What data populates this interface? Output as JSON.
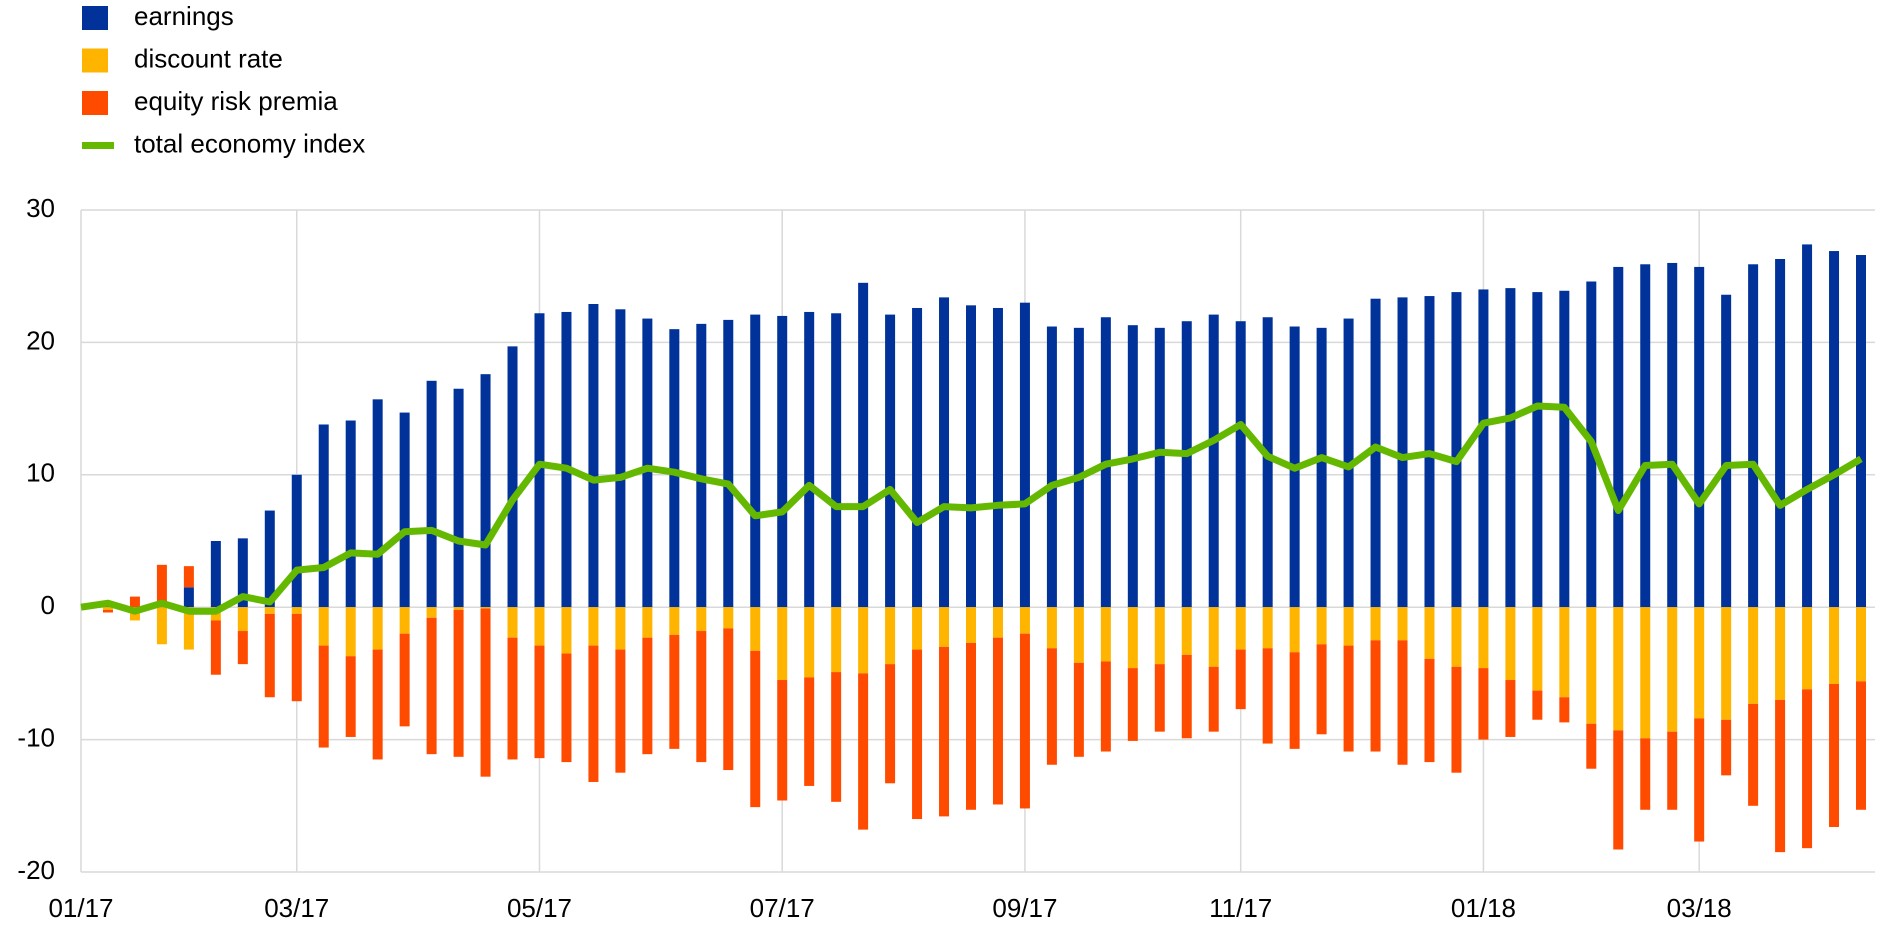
{
  "chart_data": {
    "type": "bar",
    "stacked": true,
    "categories": [
      "01/17",
      null,
      null,
      null,
      null,
      null,
      null,
      null,
      "03/17",
      null,
      null,
      null,
      null,
      null,
      null,
      null,
      null,
      "05/17",
      null,
      null,
      null,
      null,
      null,
      null,
      null,
      null,
      "07/17",
      null,
      null,
      null,
      null,
      null,
      null,
      null,
      null,
      "09/17",
      null,
      null,
      null,
      null,
      null,
      null,
      null,
      "11/17",
      null,
      null,
      null,
      null,
      null,
      null,
      null,
      null,
      "01/18",
      null,
      null,
      null,
      null,
      null,
      null,
      null,
      "03/18",
      null,
      null,
      null,
      null,
      null,
      null
    ],
    "series": [
      {
        "name": "earnings",
        "type": "bar",
        "color": "#003299",
        "values": [
          0,
          0.3,
          0,
          0,
          1.5,
          5.0,
          5.2,
          7.3,
          10.0,
          13.8,
          14.1,
          15.7,
          14.7,
          17.1,
          16.5,
          17.6,
          19.7,
          22.2,
          22.3,
          22.9,
          22.5,
          21.8,
          21.0,
          21.4,
          21.7,
          22.1,
          22.0,
          22.3,
          22.2,
          24.5,
          22.1,
          22.6,
          23.4,
          22.8,
          22.6,
          23.0,
          21.2,
          21.1,
          21.9,
          21.3,
          21.1,
          21.6,
          22.1,
          21.6,
          21.9,
          21.2,
          21.1,
          21.8,
          23.3,
          23.4,
          23.5,
          23.8,
          24.0,
          24.1,
          23.8,
          23.9,
          24.6,
          25.7,
          25.9,
          26.0,
          25.7,
          23.6,
          25.9,
          26.3,
          27.4,
          26.9,
          26.6
        ]
      },
      {
        "name": "discount rate",
        "type": "bar",
        "color": "#ffb400",
        "values": [
          0,
          -0.2,
          -1.0,
          -2.8,
          -3.2,
          -1.0,
          -1.8,
          -0.5,
          -0.5,
          -2.9,
          -3.7,
          -3.2,
          -2.0,
          -0.8,
          -0.2,
          -0.1,
          -2.3,
          -2.9,
          -3.5,
          -2.9,
          -3.2,
          -2.3,
          -2.1,
          -1.8,
          -1.6,
          -3.3,
          -5.5,
          -5.3,
          -4.9,
          -5.0,
          -4.3,
          -3.2,
          -3.0,
          -2.7,
          -2.3,
          -2.0,
          -3.1,
          -4.2,
          -4.1,
          -4.6,
          -4.3,
          -3.6,
          -4.5,
          -3.2,
          -3.1,
          -3.4,
          -2.8,
          -2.9,
          -2.5,
          -2.5,
          -3.9,
          -4.5,
          -4.6,
          -5.5,
          -6.3,
          -6.8,
          -8.8,
          -9.3,
          -9.9,
          -9.4,
          -8.4,
          -8.5,
          -7.3,
          -7.0,
          -6.2,
          -5.8,
          -5.6
        ]
      },
      {
        "name": "equity risk premia",
        "type": "bar",
        "color": "#ff4b00",
        "values": [
          0,
          -0.2,
          0.8,
          3.2,
          1.6,
          -4.1,
          -2.5,
          -6.3,
          -6.6,
          -7.7,
          -6.1,
          -8.3,
          -7.0,
          -10.3,
          -11.1,
          -12.7,
          -9.2,
          -8.5,
          -8.2,
          -10.3,
          -9.3,
          -8.8,
          -8.6,
          -9.9,
          -10.7,
          -11.8,
          -9.1,
          -8.2,
          -9.8,
          -11.8,
          -9.0,
          -12.8,
          -12.8,
          -12.6,
          -12.6,
          -13.2,
          -8.8,
          -7.1,
          -6.8,
          -5.5,
          -5.1,
          -6.3,
          -4.9,
          -4.5,
          -7.2,
          -7.3,
          -6.8,
          -8.0,
          -8.4,
          -9.4,
          -7.8,
          -8.0,
          -5.4,
          -4.3,
          -2.2,
          -1.9,
          -3.4,
          -9.0,
          -5.4,
          -5.9,
          -9.3,
          -4.2,
          -7.7,
          -11.5,
          -12.0,
          -10.8,
          -9.7
        ]
      },
      {
        "name": "total economy index",
        "type": "line",
        "color": "#65b800",
        "values": [
          0,
          0.3,
          -0.3,
          0.3,
          -0.3,
          -0.3,
          0.8,
          0.4,
          2.8,
          3.0,
          4.1,
          4.0,
          5.7,
          5.8,
          5.0,
          4.7,
          8.1,
          10.8,
          10.5,
          9.6,
          9.8,
          10.5,
          10.2,
          9.7,
          9.3,
          6.9,
          7.2,
          9.2,
          7.6,
          7.6,
          8.9,
          6.4,
          7.6,
          7.5,
          7.7,
          7.8,
          9.2,
          9.8,
          10.8,
          11.2,
          11.7,
          11.6,
          12.6,
          13.8,
          11.4,
          10.5,
          11.3,
          10.6,
          12.1,
          11.3,
          11.6,
          11.0,
          13.9,
          14.3,
          15.2,
          15.1,
          12.5,
          7.3,
          10.7,
          10.8,
          7.8,
          10.7,
          10.8,
          7.7,
          8.9,
          10.0,
          11.2
        ]
      }
    ],
    "ylim": [
      -20,
      30
    ],
    "yticks": [
      -20,
      -10,
      0,
      10,
      20,
      30
    ],
    "grid": true,
    "legend": "top-left"
  }
}
